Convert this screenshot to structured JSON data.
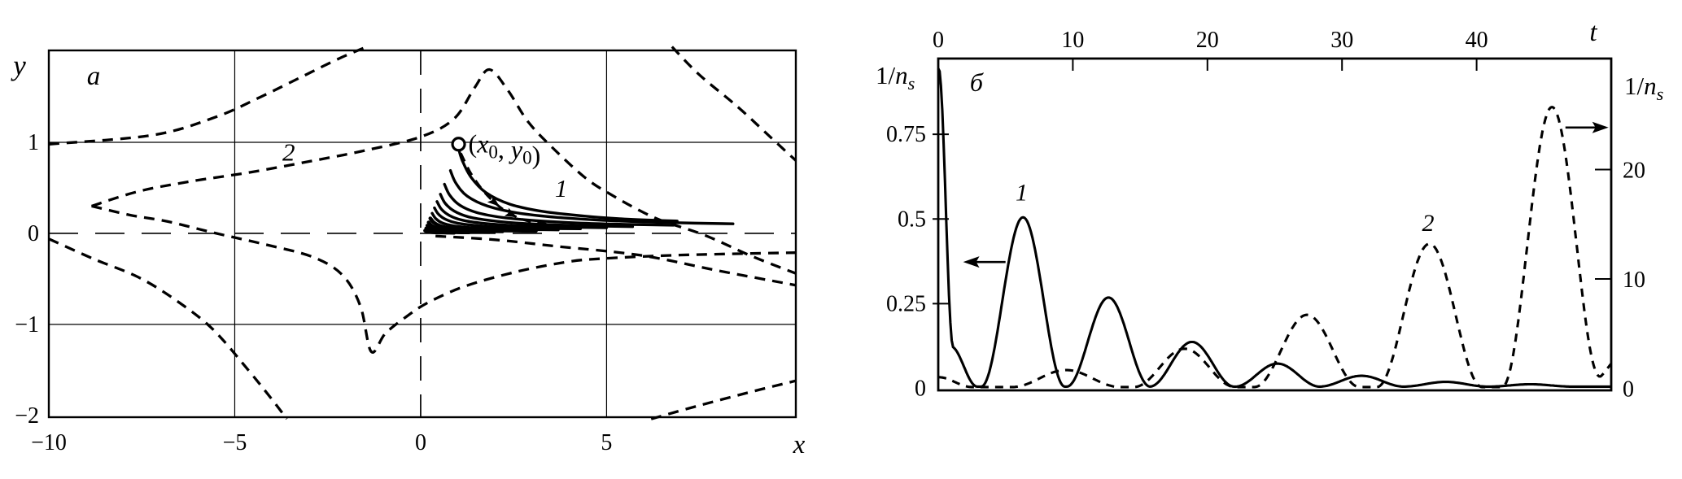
{
  "figure": {
    "background": "#ffffff",
    "ink": "#000000"
  },
  "chart_data": [
    {
      "id": "a",
      "type": "line",
      "panel_label": "a",
      "xlabel": "x",
      "ylabel": "y",
      "xlim": [
        -10,
        10.09
      ],
      "ylim": [
        -2.02,
        2.01
      ],
      "x_ticks": [
        {
          "v": -10,
          "t": "−10"
        },
        {
          "v": -5,
          "t": "−5"
        },
        {
          "v": 0,
          "t": "0"
        },
        {
          "v": 5,
          "t": "5"
        }
      ],
      "y_ticks": [
        {
          "v": 1,
          "t": "1"
        },
        {
          "v": 0,
          "t": "0"
        },
        {
          "v": -1,
          "t": "−1"
        },
        {
          "v": -2,
          "t": "−2"
        }
      ],
      "grid_x": [
        -5,
        5
      ],
      "grid_y": [
        -1,
        1
      ],
      "dashed_axis_x": 0,
      "dashed_axis_y": 0,
      "start_point": {
        "x": 1.02,
        "y": 0.98,
        "label_parts": [
          {
            "t": "("
          },
          {
            "t": "x",
            "i": 1
          },
          {
            "t": "0",
            "sub": 1
          },
          {
            "t": ", "
          },
          {
            "t": "y",
            "i": 1
          },
          {
            "t": "0",
            "sub": 1
          },
          {
            "t": ")"
          }
        ]
      },
      "curve_labels": [
        {
          "text": "1",
          "x": 3.78,
          "y": 0.4
        },
        {
          "text": "2",
          "x": -3.55,
          "y": 0.8
        }
      ],
      "separatrices": [
        {
          "name": "upper-left",
          "points": [
            [
              -10,
              0.98
            ],
            [
              -7.2,
              1.08
            ],
            [
              -5.5,
              1.28
            ],
            [
              -4.3,
              1.5
            ],
            [
              -3.2,
              1.72
            ],
            [
              -2.2,
              1.92
            ],
            [
              -1.45,
              2.05
            ]
          ]
        },
        {
          "name": "upper-right",
          "points": [
            [
              6.76,
              2.05
            ],
            [
              7.5,
              1.74
            ],
            [
              8.5,
              1.4
            ],
            [
              9.4,
              1.06
            ],
            [
              10.09,
              0.8
            ]
          ]
        },
        {
          "name": "hairpin-upper",
          "points": [
            [
              -8.85,
              0.3
            ],
            [
              -7.6,
              0.46
            ],
            [
              -6.2,
              0.57
            ],
            [
              -4.6,
              0.67
            ],
            [
              -3.0,
              0.79
            ],
            [
              -1.5,
              0.91
            ],
            [
              0.0,
              1.06
            ],
            [
              0.9,
              1.26
            ],
            [
              1.45,
              1.6
            ],
            [
              1.85,
              1.8
            ],
            [
              2.35,
              1.57
            ],
            [
              2.9,
              1.22
            ],
            [
              3.6,
              0.92
            ],
            [
              4.4,
              0.62
            ],
            [
              5.06,
              0.44
            ],
            [
              6.3,
              0.17
            ],
            [
              7.64,
              -0.02
            ],
            [
              8.9,
              -0.25
            ],
            [
              10.09,
              -0.44
            ]
          ]
        },
        {
          "name": "hairpin-lower",
          "points": [
            [
              -8.85,
              0.3
            ],
            [
              -7.8,
              0.2
            ],
            [
              -6.8,
              0.13
            ],
            [
              -5.5,
              0.0
            ],
            [
              -4.2,
              -0.12
            ],
            [
              -2.9,
              -0.26
            ],
            [
              -2.1,
              -0.46
            ],
            [
              -1.62,
              -0.8
            ],
            [
              -1.33,
              -1.3
            ],
            [
              -0.95,
              -1.1
            ],
            [
              -0.4,
              -0.92
            ],
            [
              0.2,
              -0.76
            ],
            [
              1.2,
              -0.58
            ],
            [
              2.6,
              -0.42
            ],
            [
              4.0,
              -0.31
            ],
            [
              5.0,
              -0.275
            ],
            [
              6.5,
              -0.245
            ],
            [
              8.0,
              -0.228
            ],
            [
              10.09,
              -0.212
            ]
          ]
        },
        {
          "name": "lower-left",
          "points": [
            [
              -10,
              -0.06
            ],
            [
              -8.8,
              -0.28
            ],
            [
              -7.6,
              -0.48
            ],
            [
              -6.6,
              -0.73
            ],
            [
              -5.6,
              -1.05
            ],
            [
              -4.6,
              -1.52
            ],
            [
              -3.95,
              -1.85
            ],
            [
              -3.6,
              -2.04
            ]
          ]
        },
        {
          "name": "lower-right",
          "points": [
            [
              6.2,
              -2.04
            ],
            [
              7.5,
              -1.89
            ],
            [
              9.0,
              -1.73
            ],
            [
              10.09,
              -1.62
            ]
          ]
        },
        {
          "name": "saddle-tail",
          "points": [
            [
              0.4,
              -0.03
            ],
            [
              2.0,
              -0.07
            ],
            [
              3.6,
              -0.14
            ],
            [
              5.9,
              -0.24
            ],
            [
              8.0,
              -0.41
            ],
            [
              10.09,
              -0.57
            ]
          ]
        }
      ],
      "trajectories": [
        [
          [
            1.02,
            0.93
          ],
          [
            1.12,
            0.8
          ],
          [
            1.35,
            0.62
          ],
          [
            1.75,
            0.45
          ],
          [
            2.4,
            0.32
          ],
          [
            3.3,
            0.24
          ],
          [
            4.4,
            0.19
          ],
          [
            5.6,
            0.155
          ],
          [
            6.9,
            0.135
          ]
        ],
        [
          [
            0.8,
            0.69
          ],
          [
            0.95,
            0.55
          ],
          [
            1.25,
            0.41
          ],
          [
            1.8,
            0.3
          ],
          [
            2.6,
            0.225
          ],
          [
            3.7,
            0.175
          ],
          [
            5.1,
            0.14
          ],
          [
            6.7,
            0.118
          ],
          [
            8.4,
            0.105
          ]
        ],
        [
          [
            0.64,
            0.54
          ],
          [
            0.78,
            0.42
          ],
          [
            1.05,
            0.31
          ],
          [
            1.5,
            0.23
          ],
          [
            2.2,
            0.175
          ],
          [
            3.1,
            0.14
          ],
          [
            4.3,
            0.113
          ],
          [
            5.6,
            0.098
          ],
          [
            6.8,
            0.09
          ]
        ],
        [
          [
            0.53,
            0.43
          ],
          [
            0.66,
            0.33
          ],
          [
            0.9,
            0.245
          ],
          [
            1.3,
            0.18
          ],
          [
            1.9,
            0.14
          ],
          [
            2.7,
            0.11
          ],
          [
            3.7,
            0.092
          ],
          [
            4.8,
            0.08
          ],
          [
            5.7,
            0.074
          ]
        ],
        [
          [
            0.44,
            0.35
          ],
          [
            0.56,
            0.265
          ],
          [
            0.78,
            0.195
          ],
          [
            1.12,
            0.145
          ],
          [
            1.65,
            0.112
          ],
          [
            2.35,
            0.09
          ],
          [
            3.2,
            0.075
          ],
          [
            4.2,
            0.066
          ],
          [
            5.0,
            0.062
          ]
        ],
        [
          [
            0.37,
            0.28
          ],
          [
            0.48,
            0.21
          ],
          [
            0.68,
            0.152
          ],
          [
            0.98,
            0.113
          ],
          [
            1.45,
            0.088
          ],
          [
            2.05,
            0.071
          ],
          [
            2.8,
            0.06
          ],
          [
            3.6,
            0.053
          ],
          [
            4.3,
            0.05
          ]
        ],
        [
          [
            0.31,
            0.22
          ],
          [
            0.41,
            0.16
          ],
          [
            0.58,
            0.115
          ],
          [
            0.85,
            0.085
          ],
          [
            1.25,
            0.066
          ],
          [
            1.75,
            0.054
          ],
          [
            2.4,
            0.046
          ],
          [
            3.1,
            0.041
          ],
          [
            3.7,
            0.038
          ]
        ],
        [
          [
            0.26,
            0.165
          ],
          [
            0.35,
            0.12
          ],
          [
            0.5,
            0.085
          ],
          [
            0.73,
            0.062
          ],
          [
            1.07,
            0.048
          ],
          [
            1.5,
            0.039
          ],
          [
            2.0,
            0.033
          ],
          [
            2.6,
            0.03
          ],
          [
            3.1,
            0.028
          ]
        ],
        [
          [
            0.215,
            0.12
          ],
          [
            0.29,
            0.085
          ],
          [
            0.42,
            0.06
          ],
          [
            0.62,
            0.044
          ],
          [
            0.9,
            0.034
          ],
          [
            1.26,
            0.028
          ],
          [
            1.7,
            0.024
          ],
          [
            2.2,
            0.022
          ]
        ],
        [
          [
            0.18,
            0.085
          ],
          [
            0.25,
            0.058
          ],
          [
            0.36,
            0.04
          ],
          [
            0.53,
            0.03
          ],
          [
            0.77,
            0.023
          ],
          [
            1.08,
            0.019
          ],
          [
            1.45,
            0.016
          ],
          [
            1.85,
            0.015
          ]
        ],
        [
          [
            0.15,
            0.055
          ],
          [
            0.21,
            0.037
          ],
          [
            0.31,
            0.026
          ],
          [
            0.46,
            0.019
          ],
          [
            0.67,
            0.015
          ],
          [
            0.95,
            0.012
          ],
          [
            1.3,
            0.011
          ]
        ],
        [
          [
            0.12,
            0.03
          ],
          [
            0.18,
            0.02
          ],
          [
            0.28,
            0.014
          ],
          [
            0.42,
            0.01
          ],
          [
            0.62,
            0.008
          ],
          [
            0.9,
            0.007
          ]
        ]
      ],
      "dashed_trajectory": {
        "points": [
          [
            1.08,
            0.88
          ],
          [
            1.35,
            0.66
          ],
          [
            1.7,
            0.46
          ],
          [
            2.1,
            0.3
          ],
          [
            2.55,
            0.185
          ],
          [
            3.0,
            0.125
          ],
          [
            3.5,
            0.1
          ]
        ],
        "arrows": [
          {
            "x": 2.12,
            "y": 0.295,
            "deg": 40
          },
          {
            "x": 2.6,
            "y": 0.175,
            "deg": 27
          }
        ]
      }
    },
    {
      "id": "b",
      "type": "line",
      "panel_label": "б",
      "panel_label_pos": {
        "t": 2.84,
        "v": 0.877
      },
      "top_axis": {
        "label": "t",
        "lim": [
          0,
          50
        ],
        "ticks": [
          {
            "v": 0,
            "t": "0"
          },
          {
            "v": 10,
            "t": "10"
          },
          {
            "v": 20,
            "t": "20"
          },
          {
            "v": 30,
            "t": "30"
          },
          {
            "v": 40,
            "t": "40"
          }
        ]
      },
      "left_axis": {
        "label_parts": [
          {
            "t": "1/"
          },
          {
            "t": "n",
            "i": 1
          },
          {
            "t": "s",
            "i": 1,
            "sub": 1
          }
        ],
        "lim": [
          0,
          0.98
        ],
        "ticks": [
          {
            "v": 0,
            "t": "0"
          },
          {
            "v": 0.25,
            "t": "0.25"
          },
          {
            "v": 0.5,
            "t": "0.5"
          },
          {
            "v": 0.75,
            "t": "0.75"
          }
        ]
      },
      "right_axis": {
        "label_parts": [
          {
            "t": "1/"
          },
          {
            "t": "n",
            "i": 1
          },
          {
            "t": "s",
            "i": 1,
            "sub": 1
          }
        ],
        "lim": [
          0,
          30.3
        ],
        "ticks": [
          {
            "v": 0,
            "t": "0"
          },
          {
            "v": 10,
            "t": "10"
          },
          {
            "v": 20,
            "t": "20"
          }
        ]
      },
      "series": [
        {
          "name": "1",
          "axis": "left",
          "style": "solid",
          "baseline": 0.005,
          "pulses": [
            [
              0,
              0.87,
              2.2
            ],
            [
              0.9,
              0.12,
              4.0
            ],
            [
              6.3,
              0.5,
              6.2
            ],
            [
              12.65,
              0.263,
              6.2
            ],
            [
              18.85,
              0.132,
              6.3
            ],
            [
              25.2,
              0.068,
              6.3
            ],
            [
              31.45,
              0.032,
              6.3
            ],
            [
              37.7,
              0.014,
              6.3
            ],
            [
              44.0,
              0.007,
              6.3
            ]
          ],
          "label": {
            "text": "1",
            "t": 6.2,
            "v_left": 0.555
          }
        },
        {
          "name": "2",
          "axis": "right",
          "style": "dashed",
          "baseline": 0.12,
          "pulses": [
            [
              0,
              0.9,
              5.0
            ],
            [
              9.5,
              1.55,
              8.0
            ],
            [
              18.3,
              3.5,
              7.5
            ],
            [
              27.4,
              6.6,
              7.8
            ],
            [
              36.5,
              13.1,
              7.8
            ],
            [
              45.6,
              25.6,
              7.4
            ],
            [
              51.5,
              3.5,
              7.0
            ]
          ],
          "label": {
            "text": "2",
            "t": 36.4,
            "v_left": 0.465
          }
        }
      ],
      "axis_arrows": [
        {
          "dir": "left",
          "t_head": 1.85,
          "t_tail": 5.0,
          "v_left": 0.373
        },
        {
          "dir": "right",
          "t_head": 49.8,
          "t_tail": 46.6,
          "v_left": 0.77
        }
      ]
    }
  ]
}
